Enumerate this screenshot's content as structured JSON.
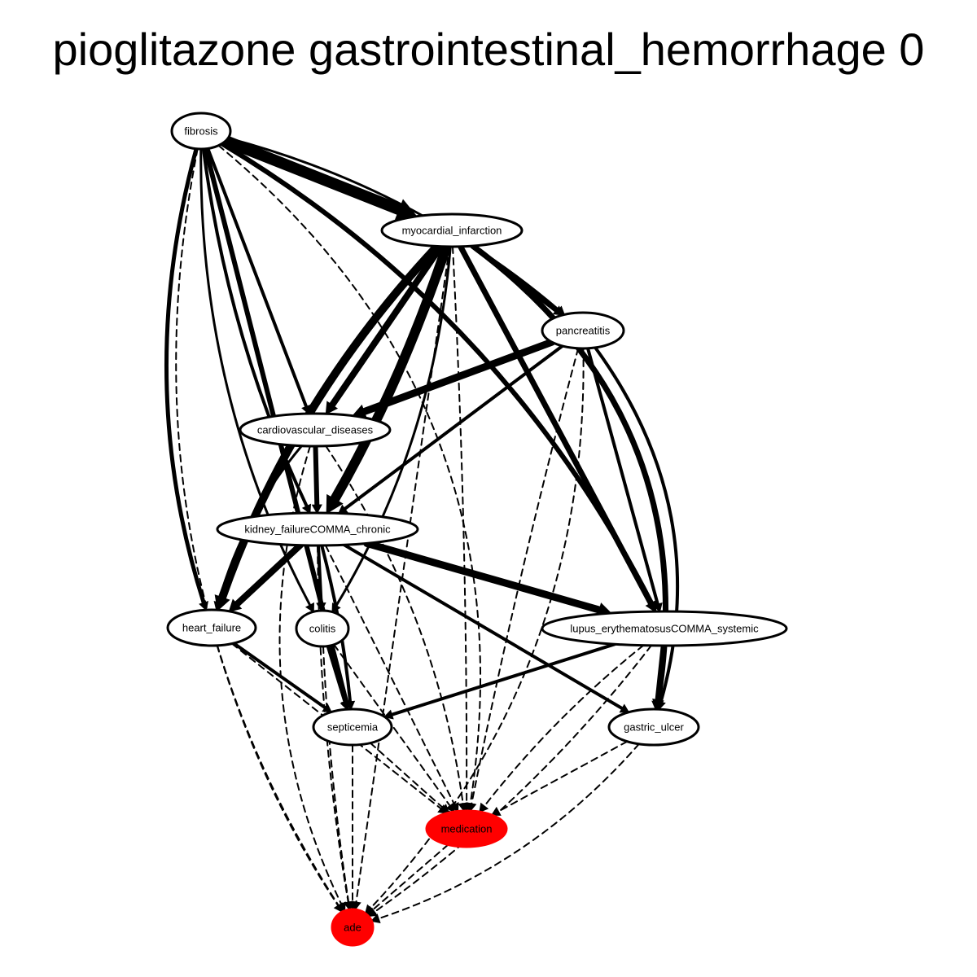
{
  "title": "pioglitazone gastrointestinal_hemorrhage 0",
  "colors": {
    "default_fill": "#ffffff",
    "highlight_fill": "#ff0000",
    "stroke": "#000000"
  },
  "nodes": [
    {
      "id": "fibrosis",
      "label": "fibrosis",
      "highlight": false
    },
    {
      "id": "myocardial_infarction",
      "label": "myocardial_infarction",
      "highlight": false
    },
    {
      "id": "pancreatitis",
      "label": "pancreatitis",
      "highlight": false
    },
    {
      "id": "cardiovascular_diseases",
      "label": "cardiovascular_diseases",
      "highlight": false
    },
    {
      "id": "kidney_failure_chronic",
      "label": "kidney_failureCOMMA_chronic",
      "highlight": false
    },
    {
      "id": "heart_failure",
      "label": "heart_failure",
      "highlight": false
    },
    {
      "id": "colitis",
      "label": "colitis",
      "highlight": false
    },
    {
      "id": "lupus",
      "label": "lupus_erythematosusCOMMA_systemic",
      "highlight": false
    },
    {
      "id": "septicemia",
      "label": "septicemia",
      "highlight": false
    },
    {
      "id": "gastric_ulcer",
      "label": "gastric_ulcer",
      "highlight": false
    },
    {
      "id": "medication",
      "label": "medication",
      "highlight": true
    },
    {
      "id": "ade",
      "label": "ade",
      "highlight": true
    }
  ],
  "edges": [
    {
      "from": "fibrosis",
      "to": "myocardial_infarction",
      "weight": 14,
      "style": "solid"
    },
    {
      "from": "fibrosis",
      "to": "pancreatitis",
      "weight": 3,
      "style": "solid"
    },
    {
      "from": "fibrosis",
      "to": "lupus",
      "weight": 6,
      "style": "solid"
    },
    {
      "from": "fibrosis",
      "to": "cardiovascular_diseases",
      "weight": 4,
      "style": "solid"
    },
    {
      "from": "fibrosis",
      "to": "kidney_failure_chronic",
      "weight": 4,
      "style": "solid"
    },
    {
      "from": "fibrosis",
      "to": "heart_failure",
      "weight": 5,
      "style": "solid"
    },
    {
      "from": "fibrosis",
      "to": "colitis",
      "weight": 3,
      "style": "solid"
    },
    {
      "from": "fibrosis",
      "to": "septicemia",
      "weight": 6,
      "style": "solid"
    },
    {
      "from": "fibrosis",
      "to": "medication",
      "weight": 2,
      "style": "dashed"
    },
    {
      "from": "fibrosis",
      "to": "ade",
      "weight": 2,
      "style": "dashed"
    },
    {
      "from": "myocardial_infarction",
      "to": "pancreatitis",
      "weight": 6,
      "style": "solid"
    },
    {
      "from": "myocardial_infarction",
      "to": "cardiovascular_diseases",
      "weight": 8,
      "style": "solid"
    },
    {
      "from": "myocardial_infarction",
      "to": "kidney_failure_chronic",
      "weight": 12,
      "style": "solid"
    },
    {
      "from": "myocardial_infarction",
      "to": "heart_failure",
      "weight": 10,
      "style": "solid"
    },
    {
      "from": "myocardial_infarction",
      "to": "colitis",
      "weight": 3,
      "style": "solid"
    },
    {
      "from": "myocardial_infarction",
      "to": "lupus",
      "weight": 7,
      "style": "solid"
    },
    {
      "from": "myocardial_infarction",
      "to": "gastric_ulcer",
      "weight": 7,
      "style": "solid"
    },
    {
      "from": "myocardial_infarction",
      "to": "medication",
      "weight": 2,
      "style": "dashed"
    },
    {
      "from": "myocardial_infarction",
      "to": "ade",
      "weight": 2,
      "style": "dashed"
    },
    {
      "from": "pancreatitis",
      "to": "cardiovascular_diseases",
      "weight": 9,
      "style": "solid"
    },
    {
      "from": "pancreatitis",
      "to": "kidney_failure_chronic",
      "weight": 4,
      "style": "solid"
    },
    {
      "from": "pancreatitis",
      "to": "lupus",
      "weight": 4,
      "style": "solid"
    },
    {
      "from": "pancreatitis",
      "to": "gastric_ulcer",
      "weight": 4,
      "style": "solid"
    },
    {
      "from": "pancreatitis",
      "to": "medication",
      "weight": 2,
      "style": "dashed"
    },
    {
      "from": "pancreatitis",
      "to": "ade",
      "weight": 2,
      "style": "dashed"
    },
    {
      "from": "cardiovascular_diseases",
      "to": "kidney_failure_chronic",
      "weight": 6,
      "style": "solid"
    },
    {
      "from": "cardiovascular_diseases",
      "to": "heart_failure",
      "weight": 3,
      "style": "solid"
    },
    {
      "from": "cardiovascular_diseases",
      "to": "medication",
      "weight": 2,
      "style": "dashed"
    },
    {
      "from": "cardiovascular_diseases",
      "to": "ade",
      "weight": 2,
      "style": "dashed"
    },
    {
      "from": "kidney_failure_chronic",
      "to": "heart_failure",
      "weight": 8,
      "style": "solid"
    },
    {
      "from": "kidney_failure_chronic",
      "to": "colitis",
      "weight": 4,
      "style": "solid"
    },
    {
      "from": "kidney_failure_chronic",
      "to": "lupus",
      "weight": 9,
      "style": "solid"
    },
    {
      "from": "kidney_failure_chronic",
      "to": "septicemia",
      "weight": 4,
      "style": "solid"
    },
    {
      "from": "kidney_failure_chronic",
      "to": "gastric_ulcer",
      "weight": 4,
      "style": "solid"
    },
    {
      "from": "kidney_failure_chronic",
      "to": "medication",
      "weight": 2,
      "style": "dashed"
    },
    {
      "from": "kidney_failure_chronic",
      "to": "ade",
      "weight": 2,
      "style": "dashed"
    },
    {
      "from": "heart_failure",
      "to": "septicemia",
      "weight": 4,
      "style": "solid"
    },
    {
      "from": "heart_failure",
      "to": "medication",
      "weight": 2,
      "style": "dashed"
    },
    {
      "from": "heart_failure",
      "to": "ade",
      "weight": 2,
      "style": "dashed"
    },
    {
      "from": "colitis",
      "to": "septicemia",
      "weight": 4,
      "style": "solid"
    },
    {
      "from": "colitis",
      "to": "medication",
      "weight": 2,
      "style": "dashed"
    },
    {
      "from": "colitis",
      "to": "ade",
      "weight": 2,
      "style": "dashed"
    },
    {
      "from": "lupus",
      "to": "septicemia",
      "weight": 4,
      "style": "solid"
    },
    {
      "from": "lupus",
      "to": "gastric_ulcer",
      "weight": 4,
      "style": "solid"
    },
    {
      "from": "lupus",
      "to": "medication",
      "weight": 2,
      "style": "dashed"
    },
    {
      "from": "lupus",
      "to": "ade",
      "weight": 2,
      "style": "dashed"
    },
    {
      "from": "septicemia",
      "to": "medication",
      "weight": 2,
      "style": "dashed"
    },
    {
      "from": "septicemia",
      "to": "ade",
      "weight": 2,
      "style": "dashed"
    },
    {
      "from": "gastric_ulcer",
      "to": "medication",
      "weight": 2,
      "style": "dashed"
    },
    {
      "from": "gastric_ulcer",
      "to": "ade",
      "weight": 2,
      "style": "dashed"
    },
    {
      "from": "medication",
      "to": "ade",
      "weight": 2,
      "style": "dashed"
    }
  ]
}
